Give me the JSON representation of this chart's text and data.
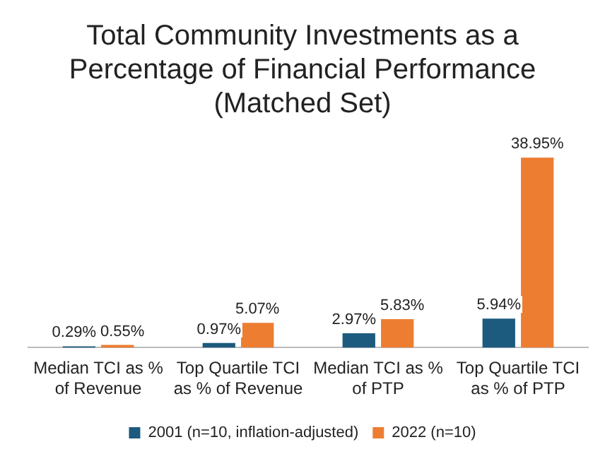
{
  "chart_data": {
    "type": "bar",
    "title": "Total Community Investments as a Percentage of Financial Performance (Matched Set)",
    "categories": [
      "Median TCI as % of Revenue",
      "Top Quartile TCI as % of Revenue",
      "Median TCI as % of PTP",
      "Top Quartile TCI as % of PTP"
    ],
    "series": [
      {
        "name": "2001 (n=10, inflation-adjusted)",
        "color": "#1d5b7e",
        "values": [
          0.29,
          0.97,
          2.97,
          5.94
        ],
        "value_labels": [
          "0.29%",
          "0.97%",
          "2.97%",
          "5.94%"
        ]
      },
      {
        "name": "2022 (n=10)",
        "color": "#ed7d31",
        "values": [
          0.55,
          5.07,
          5.83,
          38.95
        ],
        "value_labels": [
          "0.55%",
          "5.07%",
          "5.83%",
          "38.95%"
        ]
      }
    ],
    "relative": false,
    "grid": false,
    "legend": "bottom"
  }
}
